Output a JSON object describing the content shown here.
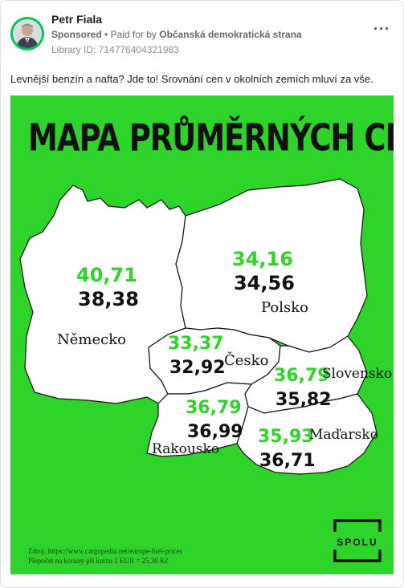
{
  "post": {
    "author": "Petr Fiala",
    "sponsored": "Sponsored",
    "separator": "•",
    "paid_for_prefix": "Paid for by",
    "paid_for_by": "Občanská demokratická strana",
    "library_id": "Library ID: 714776404321983",
    "more_icon": "more-options-icon",
    "text": "Levnější benzín a nafta? Jde to! Srovnání cen v okolních zemích mluví za vše."
  },
  "creative": {
    "title": "MAPA PRŮMĚRNÝCH CEN PHM",
    "background": "#2fd42b",
    "price_color_green": "#2fd42b",
    "countries": [
      {
        "name": "Německo",
        "green": "40,71",
        "black": "38,38"
      },
      {
        "name": "Polsko",
        "green": "34,16",
        "black": "34,56"
      },
      {
        "name": "Česko",
        "green": "33,37",
        "black": "32,92"
      },
      {
        "name": "Slovensko",
        "green": "36,79",
        "black": "35,82"
      },
      {
        "name": "Rakousko",
        "green": "36,79",
        "black": "36,99"
      },
      {
        "name": "Maďarsko",
        "green": "35,93",
        "black": "36,71"
      }
    ],
    "source_line1": "Zdroj: https://www.cargopedia.net/europe-fuel-prices",
    "source_line2": "Přepočet na koruny při kurzu 1 EUR = 25,30 Kč",
    "logo_text": "SPOLU"
  }
}
